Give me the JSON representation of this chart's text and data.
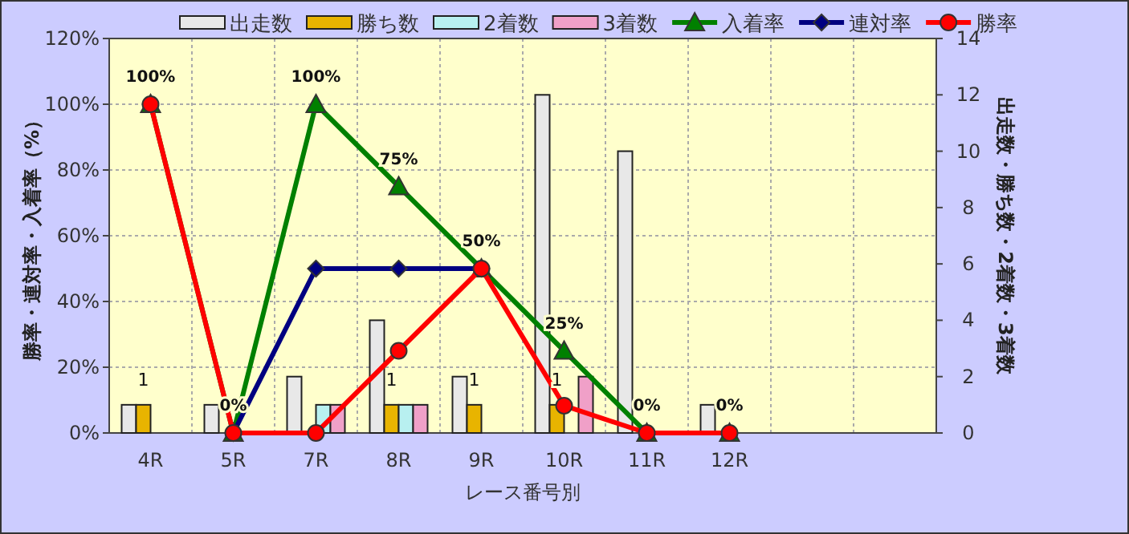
{
  "chart_data": {
    "type": "bar",
    "xlabel": "レース番号別",
    "ylabel": "勝率・連対率・入着率（%）",
    "y2label": "出走数・勝ち数・2着数・3着数",
    "categories": [
      "4R",
      "5R",
      "7R",
      "8R",
      "9R",
      "10R",
      "11R",
      "12R",
      null,
      null
    ],
    "series": [
      {
        "name": "出走数",
        "axis": "y2",
        "color": "#e8e8e8",
        "values": [
          1,
          1,
          2,
          4,
          2,
          12,
          10,
          1,
          null,
          null
        ]
      },
      {
        "name": "勝ち数",
        "axis": "y2",
        "color": "#e8b400",
        "values": [
          1,
          0,
          0,
          1,
          1,
          1,
          0,
          0,
          null,
          null
        ],
        "value_labels": [
          "1",
          null,
          null,
          "1",
          "1",
          "1",
          null,
          null,
          null,
          null
        ]
      },
      {
        "name": "2着数",
        "axis": "y2",
        "color": "#b8f0f0",
        "values": [
          0,
          0,
          1,
          1,
          0,
          0,
          0,
          0,
          null,
          null
        ]
      },
      {
        "name": "3着数",
        "axis": "y2",
        "color": "#f0a0c8",
        "values": [
          0,
          0,
          1,
          1,
          0,
          2,
          0,
          0,
          null,
          null
        ]
      },
      {
        "name": "入着率",
        "type": "line",
        "color": "#008000",
        "marker": "triangle",
        "values": [
          100,
          0,
          100,
          75,
          50,
          25,
          0,
          0,
          null,
          null
        ],
        "value_labels": [
          "100%",
          "0%",
          "100%",
          "75%",
          "50%",
          "25%",
          "0%",
          "0%",
          null,
          null
        ]
      },
      {
        "name": "連対率",
        "type": "line",
        "color": "#000080",
        "marker": "diamond",
        "values": [
          null,
          0,
          50,
          50,
          50,
          null,
          null,
          null,
          null,
          null
        ]
      },
      {
        "name": "勝率",
        "type": "line",
        "color": "#ff0000",
        "marker": "circle",
        "values": [
          100,
          0,
          0,
          25,
          50,
          8.3,
          0,
          0,
          null,
          null
        ]
      }
    ],
    "ylim": [
      0,
      120
    ],
    "yticks": [
      {
        "value": 0,
        "label": "0%"
      },
      {
        "value": 20,
        "label": "20%"
      },
      {
        "value": 40,
        "label": "40%"
      },
      {
        "value": 60,
        "label": "60%"
      },
      {
        "value": 80,
        "label": "80%"
      },
      {
        "value": 100,
        "label": "100%"
      },
      {
        "value": 120,
        "label": "120%"
      }
    ],
    "y2lim": [
      0,
      14
    ],
    "y2ticks": [
      0,
      2,
      4,
      6,
      8,
      10,
      12,
      14
    ],
    "grid": true,
    "legend": "top"
  }
}
